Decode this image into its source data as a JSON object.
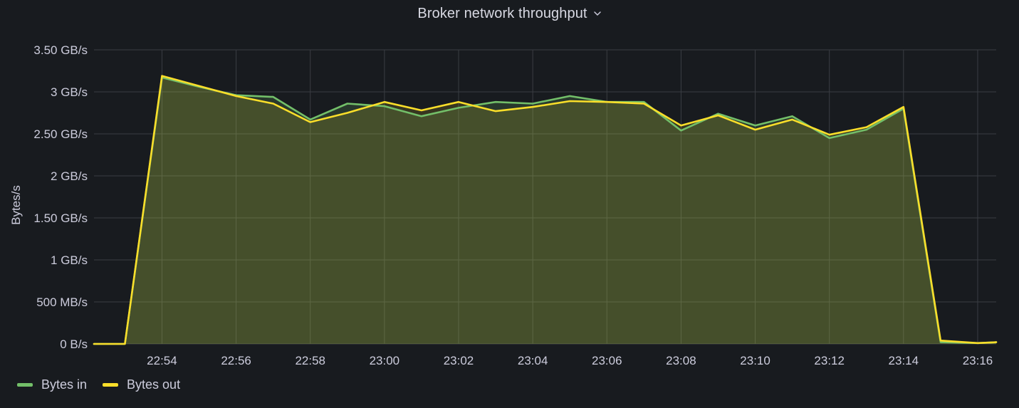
{
  "panel": {
    "title": "Broker network throughput"
  },
  "colors": {
    "background": "#181b1f",
    "grid": "#3a3d43",
    "text": "#ccccdc",
    "bytes_in": "#73bf69",
    "bytes_out": "#fade2a",
    "fill": "#4a4526"
  },
  "chart_data": {
    "type": "area",
    "ylabel": "Bytes/s",
    "y_unit": "GB/s",
    "ylim": [
      0,
      3.5
    ],
    "yticks": [
      0,
      0.5,
      1,
      1.5,
      2,
      2.5,
      3,
      3.5
    ],
    "ytick_labels": [
      "0 B/s",
      "500 MB/s",
      "1 GB/s",
      "1.50 GB/s",
      "2 GB/s",
      "2.50 GB/s",
      "3 GB/s",
      "3.50 GB/s"
    ],
    "x_range": [
      "22:52:10",
      "23:16:30"
    ],
    "xticks": [
      "22:54",
      "22:56",
      "22:58",
      "23:00",
      "23:02",
      "23:04",
      "23:06",
      "23:08",
      "23:10",
      "23:12",
      "23:14",
      "23:16"
    ],
    "x": [
      "22:52:10",
      "22:53:00",
      "22:54:00",
      "22:55:00",
      "22:56:00",
      "22:57:00",
      "22:58:00",
      "22:59:00",
      "23:00:00",
      "23:01:00",
      "23:02:00",
      "23:03:00",
      "23:04:00",
      "23:05:00",
      "23:06:00",
      "23:07:00",
      "23:08:00",
      "23:09:00",
      "23:10:00",
      "23:11:00",
      "23:12:00",
      "23:13:00",
      "23:14:00",
      "23:15:00",
      "23:16:00",
      "23:16:30"
    ],
    "grid": true,
    "legend_position": "bottom-left",
    "series": [
      {
        "name": "Bytes in",
        "color": "#73bf69",
        "values": [
          0,
          0,
          3.17,
          3.06,
          2.96,
          2.94,
          2.67,
          2.86,
          2.83,
          2.71,
          2.81,
          2.88,
          2.86,
          2.95,
          2.88,
          2.88,
          2.54,
          2.74,
          2.6,
          2.71,
          2.45,
          2.55,
          2.8,
          0.02,
          0.01,
          0.02
        ]
      },
      {
        "name": "Bytes out",
        "color": "#fade2a",
        "values": [
          0,
          0,
          3.19,
          3.07,
          2.95,
          2.86,
          2.64,
          2.75,
          2.88,
          2.78,
          2.88,
          2.77,
          2.82,
          2.89,
          2.88,
          2.86,
          2.6,
          2.72,
          2.55,
          2.67,
          2.49,
          2.58,
          2.82,
          0.04,
          0.01,
          0.02
        ]
      }
    ]
  }
}
